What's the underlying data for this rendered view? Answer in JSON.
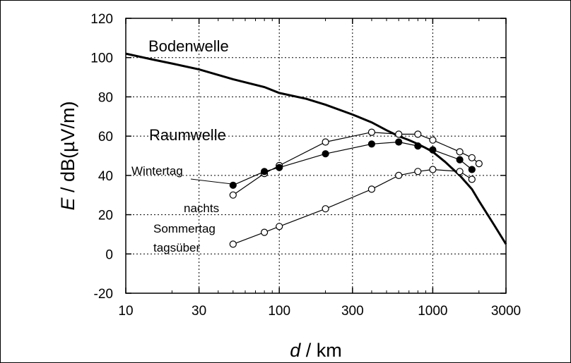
{
  "chart_data": {
    "type": "line",
    "x_scale": "log",
    "xlim": [
      10,
      3000
    ],
    "ylim": [
      -20,
      120
    ],
    "x_ticks": [
      10,
      30,
      100,
      300,
      1000,
      3000
    ],
    "x_tick_labels": [
      "10",
      "30",
      "100",
      "300",
      "1000",
      "3000"
    ],
    "y_ticks": [
      -20,
      0,
      20,
      40,
      60,
      80,
      100,
      120
    ],
    "y_tick_labels": [
      "-20",
      "0",
      "20",
      "40",
      "60",
      "80",
      "100",
      "120"
    ],
    "xlabel": {
      "var": "d",
      "rest": " / km"
    },
    "ylabel": {
      "var": "E",
      "rest": " / dB(µV/m)"
    },
    "grid": true,
    "annotations": {
      "bodenwelle": "Bodenwelle",
      "raumwelle": "Raumwelle",
      "wintertag": "Wintertag",
      "nachts": "nachts",
      "sommertag": "Sommertag",
      "tagsueber": "tagsüber"
    },
    "series": [
      {
        "key": "bodenwelle",
        "marker": "none",
        "x": [
          10,
          15,
          20,
          30,
          50,
          80,
          100,
          150,
          200,
          300,
          400,
          500,
          600,
          700,
          800,
          900,
          1000,
          1200,
          1500,
          1800,
          2000,
          2500,
          3000
        ],
        "y": [
          102,
          99,
          97,
          94,
          89,
          85,
          82,
          79,
          76,
          71,
          67,
          63,
          60,
          58,
          56,
          54,
          52,
          47,
          40,
          33,
          27,
          15,
          5
        ]
      },
      {
        "key": "winter_night_open",
        "marker": "open",
        "x": [
          50,
          80,
          100,
          200,
          400,
          600,
          800,
          1000,
          1500,
          1800,
          2000
        ],
        "y": [
          30,
          41,
          45,
          57,
          62,
          61,
          61,
          58,
          52,
          49,
          46
        ]
      },
      {
        "key": "winter_night_filled",
        "marker": "filled",
        "x": [
          50,
          80,
          100,
          200,
          400,
          600,
          800,
          1000,
          1500,
          1800
        ],
        "y": [
          35,
          42,
          44,
          51,
          56,
          57,
          55,
          53,
          48,
          43
        ]
      },
      {
        "key": "summer_day",
        "marker": "open",
        "x": [
          50,
          80,
          100,
          200,
          400,
          600,
          800,
          1000,
          1500,
          1800
        ],
        "y": [
          5,
          11,
          14,
          23,
          33,
          40,
          42,
          43,
          42,
          38
        ]
      }
    ]
  }
}
